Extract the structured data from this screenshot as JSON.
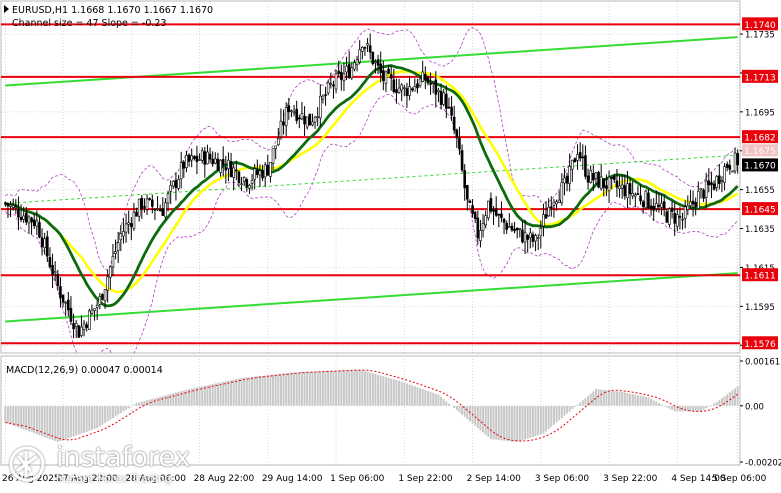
{
  "window": {
    "symbol_info": "EURUSD,H1  1.1668 1.1670 1.1667 1.1670",
    "indicator_info": "Channel size = 47 Slope = -0.23",
    "current_price_label": "1.1670",
    "hidden_label": "1.1675"
  },
  "colors": {
    "background": "#ffffff",
    "grid": "#c8c8c8",
    "level_line": "#e8000b",
    "level_badge": "#e8000b",
    "channel": "#33dd33",
    "ma_fast": "#ffff00",
    "ma_slow": "#0d6b0d",
    "bollinger": "#b040c0",
    "candle": "#000000",
    "macd_hist": "#c8c8c8",
    "macd_signal": "#e8000b",
    "current_price_bg": "#000000"
  },
  "levels": [
    {
      "value": 1.174,
      "label": "1.1740"
    },
    {
      "value": 1.1713,
      "label": "1.1713"
    },
    {
      "value": 1.1682,
      "label": "1.1682"
    },
    {
      "value": 1.1645,
      "label": "1.1645"
    },
    {
      "value": 1.1611,
      "label": "1.1611"
    },
    {
      "value": 1.1576,
      "label": "1.1576"
    }
  ],
  "y_ticks": [
    "1.1735",
    "1.1715",
    "1.1695",
    "1.1675",
    "1.1655",
    "1.1635",
    "1.1615",
    "1.1595",
    "1.1575"
  ],
  "x_labels": [
    "26 Aug 2025",
    "27 Aug 22:00",
    "28 Aug 06:00",
    "28 Aug 22:00",
    "29 Aug 14:00",
    "1 Sep 06:00",
    "1 Sep 22:00",
    "2 Sep 14:00",
    "3 Sep 06:00",
    "3 Sep 22:00",
    "4 Sep 14:00",
    "5 Sep 06:00"
  ],
  "macd": {
    "label": "MACD(12,26,9) 0.00047 0.00014",
    "ticks": [
      "0.00161",
      "0.00",
      "-0.00202"
    ]
  },
  "brand": {
    "name": "instaforex",
    "tagline": "Instant Forex Trading"
  },
  "chart_data": {
    "type": "candlestick",
    "symbol": "EURUSD",
    "timeframe": "H1",
    "ylim": [
      1.1571,
      1.1752
    ],
    "price_anchors": [
      [
        0,
        1.1648
      ],
      [
        12,
        1.1638
      ],
      [
        20,
        1.1605
      ],
      [
        28,
        1.1582
      ],
      [
        36,
        1.1598
      ],
      [
        44,
        1.1632
      ],
      [
        52,
        1.1648
      ],
      [
        60,
        1.1645
      ],
      [
        68,
        1.1668
      ],
      [
        76,
        1.1672
      ],
      [
        84,
        1.1668
      ],
      [
        92,
        1.166
      ],
      [
        100,
        1.1666
      ],
      [
        108,
        1.1698
      ],
      [
        116,
        1.169
      ],
      [
        124,
        1.1708
      ],
      [
        132,
        1.1718
      ],
      [
        136,
        1.1732
      ],
      [
        144,
        1.1712
      ],
      [
        152,
        1.1706
      ],
      [
        160,
        1.1712
      ],
      [
        168,
        1.17
      ],
      [
        172,
        1.168
      ],
      [
        176,
        1.1648
      ],
      [
        180,
        1.1632
      ],
      [
        184,
        1.1648
      ],
      [
        188,
        1.164
      ],
      [
        196,
        1.1632
      ],
      [
        202,
        1.1628
      ],
      [
        208,
        1.165
      ],
      [
        214,
        1.1658
      ],
      [
        218,
        1.1676
      ],
      [
        222,
        1.1662
      ],
      [
        228,
        1.1658
      ],
      [
        236,
        1.1655
      ],
      [
        244,
        1.165
      ],
      [
        252,
        1.1642
      ],
      [
        258,
        1.164
      ],
      [
        264,
        1.1652
      ],
      [
        270,
        1.1658
      ],
      [
        275,
        1.1668
      ],
      [
        279,
        1.167
      ]
    ],
    "candles": 280,
    "macd_histogram_shape": [
      [
        0,
        -0.0006
      ],
      [
        20,
        -0.0013
      ],
      [
        35,
        -0.0008
      ],
      [
        50,
        0.0001
      ],
      [
        70,
        0.0006
      ],
      [
        90,
        0.001
      ],
      [
        110,
        0.0012
      ],
      [
        135,
        0.0013
      ],
      [
        150,
        0.0009
      ],
      [
        165,
        0.0004
      ],
      [
        175,
        -0.0004
      ],
      [
        185,
        -0.0012
      ],
      [
        195,
        -0.0013
      ],
      [
        205,
        -0.001
      ],
      [
        215,
        -0.0002
      ],
      [
        225,
        0.0006
      ],
      [
        235,
        0.0005
      ],
      [
        245,
        0.0003
      ],
      [
        255,
        -0.0002
      ],
      [
        265,
        -0.0002
      ],
      [
        272,
        0.0002
      ],
      [
        279,
        0.0007
      ]
    ]
  }
}
